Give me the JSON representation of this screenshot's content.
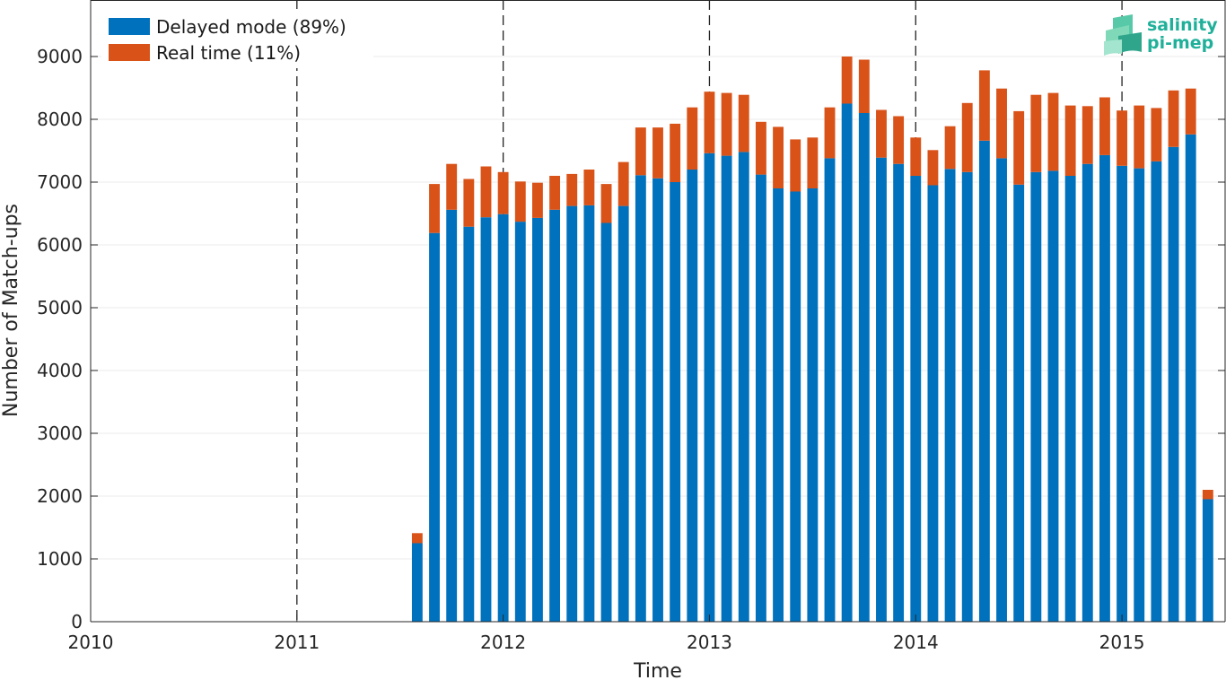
{
  "logo": {
    "line1": "salinity",
    "line2": "pi-mep"
  },
  "chart_data": {
    "type": "bar",
    "stacked": true,
    "xlabel": "Time",
    "ylabel": "Number of Match-ups",
    "x_ticks": [
      "2010",
      "2011",
      "2012",
      "2013",
      "2014",
      "2015"
    ],
    "y_ticks": [
      0,
      1000,
      2000,
      3000,
      4000,
      5000,
      6000,
      7000,
      8000,
      9000
    ],
    "xlim": [
      "2010-01",
      "2015-07"
    ],
    "ylim": [
      0,
      9900
    ],
    "year_dividers": [
      "2011",
      "2012",
      "2013",
      "2014",
      "2015"
    ],
    "grid": "horizontal",
    "legend_placement": "top-left",
    "categories": [
      "2011-08",
      "2011-09",
      "2011-10",
      "2011-11",
      "2011-12",
      "2012-01",
      "2012-02",
      "2012-03",
      "2012-04",
      "2012-05",
      "2012-06",
      "2012-07",
      "2012-08",
      "2012-09",
      "2012-10",
      "2012-11",
      "2012-12",
      "2013-01",
      "2013-02",
      "2013-03",
      "2013-04",
      "2013-05",
      "2013-06",
      "2013-07",
      "2013-08",
      "2013-09",
      "2013-10",
      "2013-11",
      "2013-12",
      "2014-01",
      "2014-02",
      "2014-03",
      "2014-04",
      "2014-05",
      "2014-06",
      "2014-07",
      "2014-08",
      "2014-09",
      "2014-10",
      "2014-11",
      "2014-12",
      "2015-01",
      "2015-02",
      "2015-03",
      "2015-04",
      "2015-05",
      "2015-06"
    ],
    "series": [
      {
        "name": "Delayed mode (89%)",
        "color": "#0072bd",
        "values": [
          1250,
          6190,
          6560,
          6290,
          6440,
          6490,
          6370,
          6430,
          6560,
          6620,
          6630,
          6350,
          6620,
          7110,
          7060,
          7000,
          7200,
          7460,
          7420,
          7480,
          7120,
          6900,
          6850,
          6900,
          7380,
          8250,
          8100,
          7390,
          7290,
          7100,
          6950,
          7210,
          7160,
          7660,
          7380,
          6960,
          7160,
          7180,
          7100,
          7290,
          7430,
          7260,
          7220,
          7330,
          7560,
          7760,
          1950
        ]
      },
      {
        "name": "Real time (11%)",
        "color": "#d95319",
        "values": [
          160,
          780,
          730,
          760,
          810,
          670,
          640,
          560,
          540,
          510,
          570,
          620,
          700,
          760,
          810,
          930,
          990,
          980,
          1000,
          910,
          840,
          980,
          830,
          810,
          810,
          750,
          850,
          760,
          760,
          610,
          560,
          680,
          1100,
          1120,
          1110,
          1170,
          1230,
          1240,
          1120,
          920,
          920,
          880,
          1000,
          850,
          900,
          730,
          150
        ]
      }
    ]
  }
}
